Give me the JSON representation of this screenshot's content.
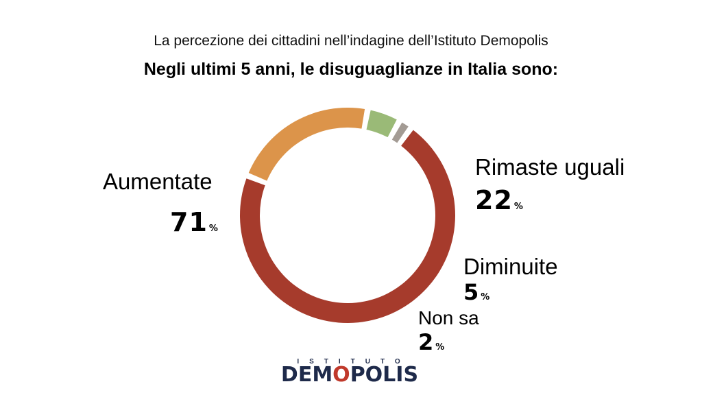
{
  "header": {
    "subtitle": "La percezione dei cittadini nell’indagine dell’Istituto Demopolis",
    "title": "Negli ultimi 5 anni, le disuguaglianze in Italia sono:"
  },
  "chart_data": {
    "type": "pie",
    "style": "donut",
    "title": "Negli ultimi 5 anni, le disuguaglianze in Italia sono:",
    "subtitle": "La percezione dei cittadini nell’indagine dell’Istituto Demopolis",
    "unit": "%",
    "slices": [
      {
        "label": "Aumentate",
        "value": 71,
        "color": "#a63b2c"
      },
      {
        "label": "Rimaste uguali",
        "value": 22,
        "color": "#dc944a"
      },
      {
        "label": "Diminuite",
        "value": 5,
        "color": "#9aba77"
      },
      {
        "label": "Non sa",
        "value": 2,
        "color": "#a39b94"
      }
    ]
  },
  "labels": {
    "aumentate": {
      "name": "Aumentate",
      "value": "71",
      "unit": "%"
    },
    "rimaste": {
      "name": "Rimaste uguali",
      "value": "22",
      "unit": "%"
    },
    "diminuite": {
      "name": "Diminuite",
      "value": "5",
      "unit": "%"
    },
    "nonsa": {
      "name": "Non sa",
      "value": "2",
      "unit": "%"
    }
  },
  "logo": {
    "top": "ISTITUTO",
    "main_a": "DEM",
    "main_o": "O",
    "main_b": "POLIS"
  }
}
